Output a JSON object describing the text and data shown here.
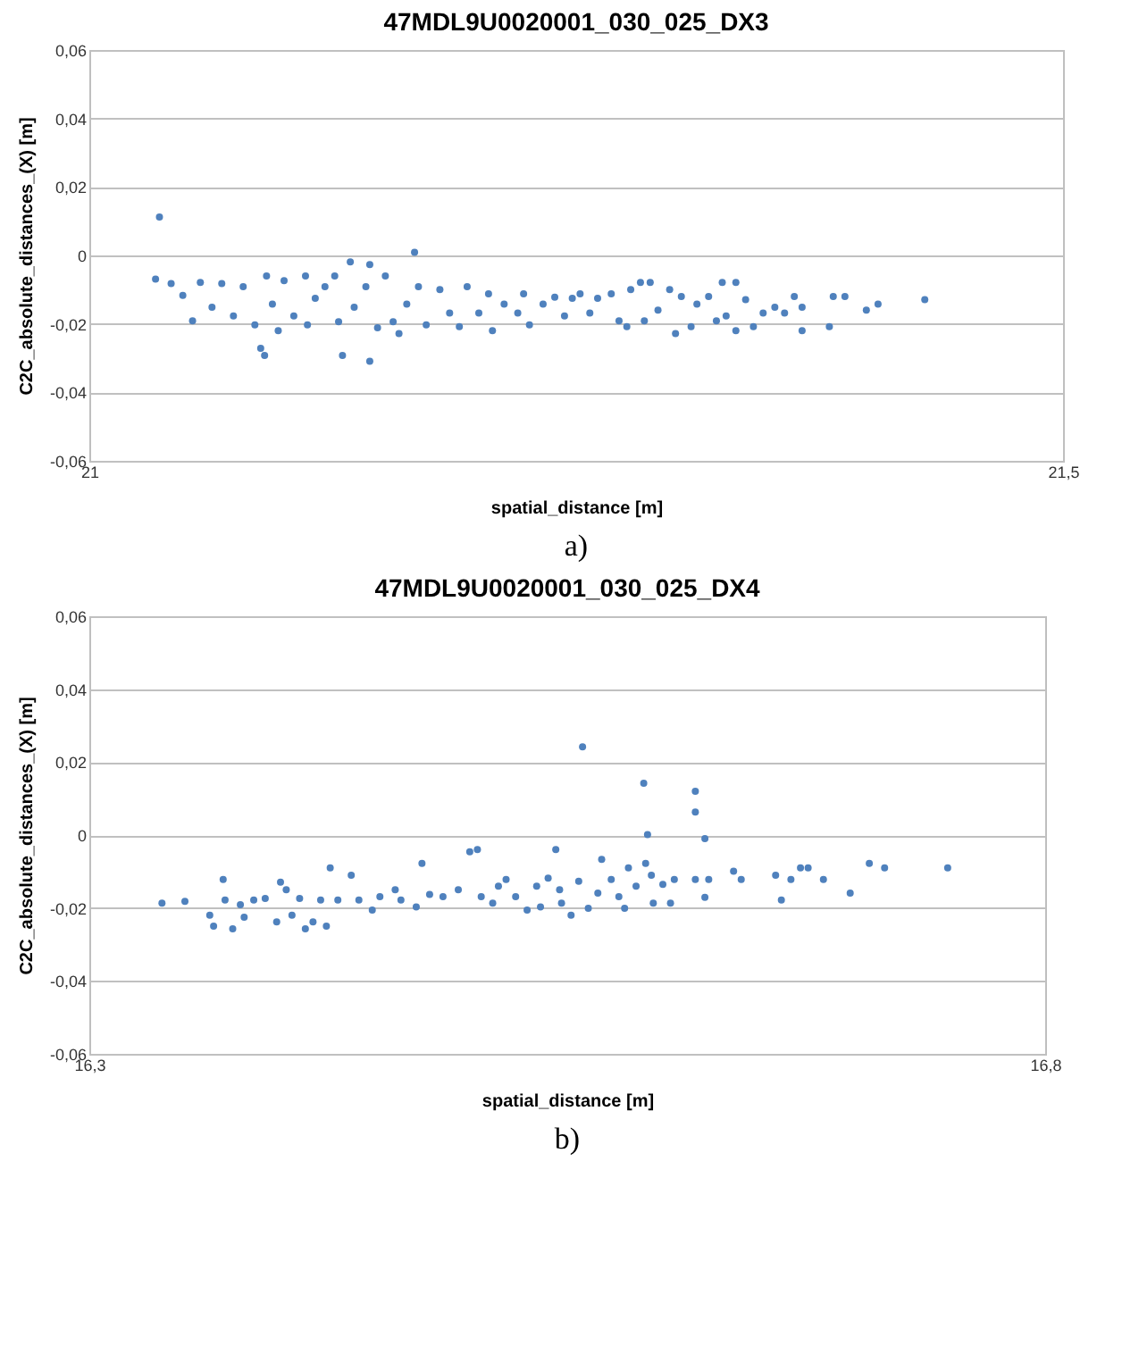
{
  "chart_data": [
    {
      "type": "scatter",
      "title": "47MDL9U0020001_030_025_DX3",
      "xlabel": "spatial_distance [m]",
      "ylabel": "C2C_absolute_distances_(X) [m]",
      "annotations": [
        "a)"
      ],
      "xlim": [
        21,
        21.5
      ],
      "xticks": [
        21,
        {
          "value": 21.5,
          "label": "21,5"
        }
      ],
      "ylim": [
        -0.06,
        0.06
      ],
      "yticks": [
        {
          "value": -0.06,
          "label": "-0,06"
        },
        {
          "value": -0.04,
          "label": "-0,04"
        },
        {
          "value": -0.02,
          "label": "-0,02"
        },
        0,
        {
          "value": 0.02,
          "label": "0,02"
        },
        {
          "value": 0.04,
          "label": "0,04"
        },
        {
          "value": 0.06,
          "label": "0,06"
        }
      ],
      "grid": "y",
      "marker": "circle",
      "series": [
        {
          "color": "#4f81bd",
          "x": [
            21.036,
            21.034,
            21.042,
            21.048,
            21.053,
            21.057,
            21.063,
            21.068,
            21.074,
            21.079,
            21.085,
            21.088,
            21.09,
            21.091,
            21.094,
            21.097,
            21.1,
            21.105,
            21.111,
            21.112,
            21.116,
            21.121,
            21.126,
            21.128,
            21.13,
            21.134,
            21.136,
            21.142,
            21.144,
            21.144,
            21.148,
            21.152,
            21.156,
            21.159,
            21.163,
            21.167,
            21.169,
            21.173,
            21.18,
            21.185,
            21.19,
            21.194,
            21.2,
            21.205,
            21.207,
            21.213,
            21.22,
            21.223,
            21.226,
            21.233,
            21.239,
            21.244,
            21.248,
            21.252,
            21.257,
            21.261,
            21.268,
            21.272,
            21.276,
            21.278,
            21.283,
            21.285,
            21.288,
            21.292,
            21.298,
            21.301,
            21.304,
            21.309,
            21.312,
            21.318,
            21.322,
            21.325,
            21.327,
            21.332,
            21.332,
            21.337,
            21.341,
            21.346,
            21.352,
            21.357,
            21.362,
            21.366,
            21.366,
            21.38,
            21.382,
            21.388,
            21.399,
            21.405,
            21.429
          ],
          "values": [
            0.0112,
            -0.0069,
            -0.0082,
            -0.0117,
            -0.0191,
            -0.0079,
            -0.0151,
            -0.0082,
            -0.0177,
            -0.0091,
            -0.0203,
            -0.0271,
            -0.0292,
            -0.006,
            -0.0142,
            -0.022,
            -0.0074,
            -0.0177,
            -0.006,
            -0.0203,
            -0.0125,
            -0.0091,
            -0.006,
            -0.0194,
            -0.0292,
            -0.0019,
            -0.0151,
            -0.0091,
            -0.0027,
            -0.0309,
            -0.0211,
            -0.006,
            -0.0194,
            -0.0228,
            -0.0142,
            0.0009,
            -0.0091,
            -0.0203,
            -0.01,
            -0.0168,
            -0.0208,
            -0.0091,
            -0.0168,
            -0.0112,
            -0.022,
            -0.0142,
            -0.0168,
            -0.0112,
            -0.0203,
            -0.0142,
            -0.0122,
            -0.0177,
            -0.0125,
            -0.0112,
            -0.0168,
            -0.0125,
            -0.0112,
            -0.0191,
            -0.0208,
            -0.01,
            -0.0079,
            -0.0191,
            -0.0079,
            -0.016,
            -0.01,
            -0.0228,
            -0.012,
            -0.0208,
            -0.0142,
            -0.012,
            -0.0191,
            -0.0079,
            -0.0177,
            -0.0079,
            -0.022,
            -0.0129,
            -0.0208,
            -0.0168,
            -0.0151,
            -0.0168,
            -0.012,
            -0.0151,
            -0.022,
            -0.0208,
            -0.012,
            -0.012,
            -0.016,
            -0.0142,
            -0.0129
          ]
        }
      ]
    },
    {
      "type": "scatter",
      "title": "47MDL9U0020001_030_025_DX4",
      "xlabel": "spatial_distance [m]",
      "ylabel": "C2C_absolute_distances_(X) [m]",
      "annotations": [
        "b)"
      ],
      "xlim": [
        16.3,
        16.8
      ],
      "xticks": [
        {
          "value": 16.3,
          "label": "16,3"
        },
        {
          "value": 16.8,
          "label": "16,8"
        }
      ],
      "ylim": [
        -0.06,
        0.06
      ],
      "yticks": [
        {
          "value": -0.06,
          "label": "-0,06"
        },
        {
          "value": -0.04,
          "label": "-0,04"
        },
        {
          "value": -0.02,
          "label": "-0,02"
        },
        0,
        {
          "value": 0.02,
          "label": "0,02"
        },
        {
          "value": 0.04,
          "label": "0,04"
        },
        {
          "value": 0.06,
          "label": "0,06"
        }
      ],
      "grid": "y",
      "marker": "circle",
      "series": [
        {
          "color": "#4f81bd",
          "x": [
            16.338,
            16.35,
            16.363,
            16.365,
            16.37,
            16.371,
            16.375,
            16.379,
            16.381,
            16.386,
            16.392,
            16.398,
            16.4,
            16.403,
            16.406,
            16.41,
            16.413,
            16.417,
            16.421,
            16.424,
            16.426,
            16.43,
            16.437,
            16.441,
            16.448,
            16.452,
            16.46,
            16.463,
            16.471,
            16.474,
            16.478,
            16.485,
            16.493,
            16.499,
            16.503,
            16.505,
            16.511,
            16.514,
            16.518,
            16.523,
            16.529,
            16.534,
            16.536,
            16.54,
            16.544,
            16.546,
            16.547,
            16.552,
            16.556,
            16.558,
            16.561,
            16.566,
            16.568,
            16.573,
            16.577,
            16.58,
            16.582,
            16.586,
            16.59,
            16.591,
            16.592,
            16.594,
            16.595,
            16.6,
            16.604,
            16.606,
            16.617,
            16.617,
            16.617,
            16.622,
            16.622,
            16.624,
            16.637,
            16.641,
            16.659,
            16.662,
            16.667,
            16.672,
            16.676,
            16.684,
            16.698,
            16.708,
            16.716,
            16.749
          ],
          "values": [
            -0.0187,
            -0.0182,
            -0.022,
            -0.025,
            -0.0122,
            -0.0178,
            -0.0257,
            -0.0191,
            -0.0225,
            -0.0178,
            -0.0174,
            -0.0238,
            -0.0129,
            -0.015,
            -0.022,
            -0.0174,
            -0.0257,
            -0.0238,
            -0.0178,
            -0.025,
            -0.009,
            -0.0178,
            -0.011,
            -0.0178,
            -0.0206,
            -0.0169,
            -0.015,
            -0.0178,
            -0.0197,
            -0.0078,
            -0.0163,
            -0.0169,
            -0.015,
            -0.0046,
            -0.004,
            -0.0169,
            -0.0187,
            -0.014,
            -0.0122,
            -0.0169,
            -0.0206,
            -0.014,
            -0.0197,
            -0.0118,
            -0.004,
            -0.015,
            -0.0187,
            -0.022,
            -0.0127,
            0.0242,
            -0.0201,
            -0.0159,
            -0.0067,
            -0.0122,
            -0.0169,
            -0.0201,
            -0.009,
            -0.014,
            0.0142,
            -0.0078,
            0.0001,
            -0.011,
            -0.0187,
            -0.0135,
            -0.0187,
            -0.0122,
            0.012,
            0.0063,
            -0.0122,
            -0.001,
            -0.0171,
            -0.0122,
            -0.0099,
            -0.0122,
            -0.011,
            -0.0178,
            -0.0122,
            -0.009,
            -0.009,
            -0.0122,
            -0.0159,
            -0.0078,
            -0.009,
            -0.009
          ]
        }
      ]
    }
  ]
}
